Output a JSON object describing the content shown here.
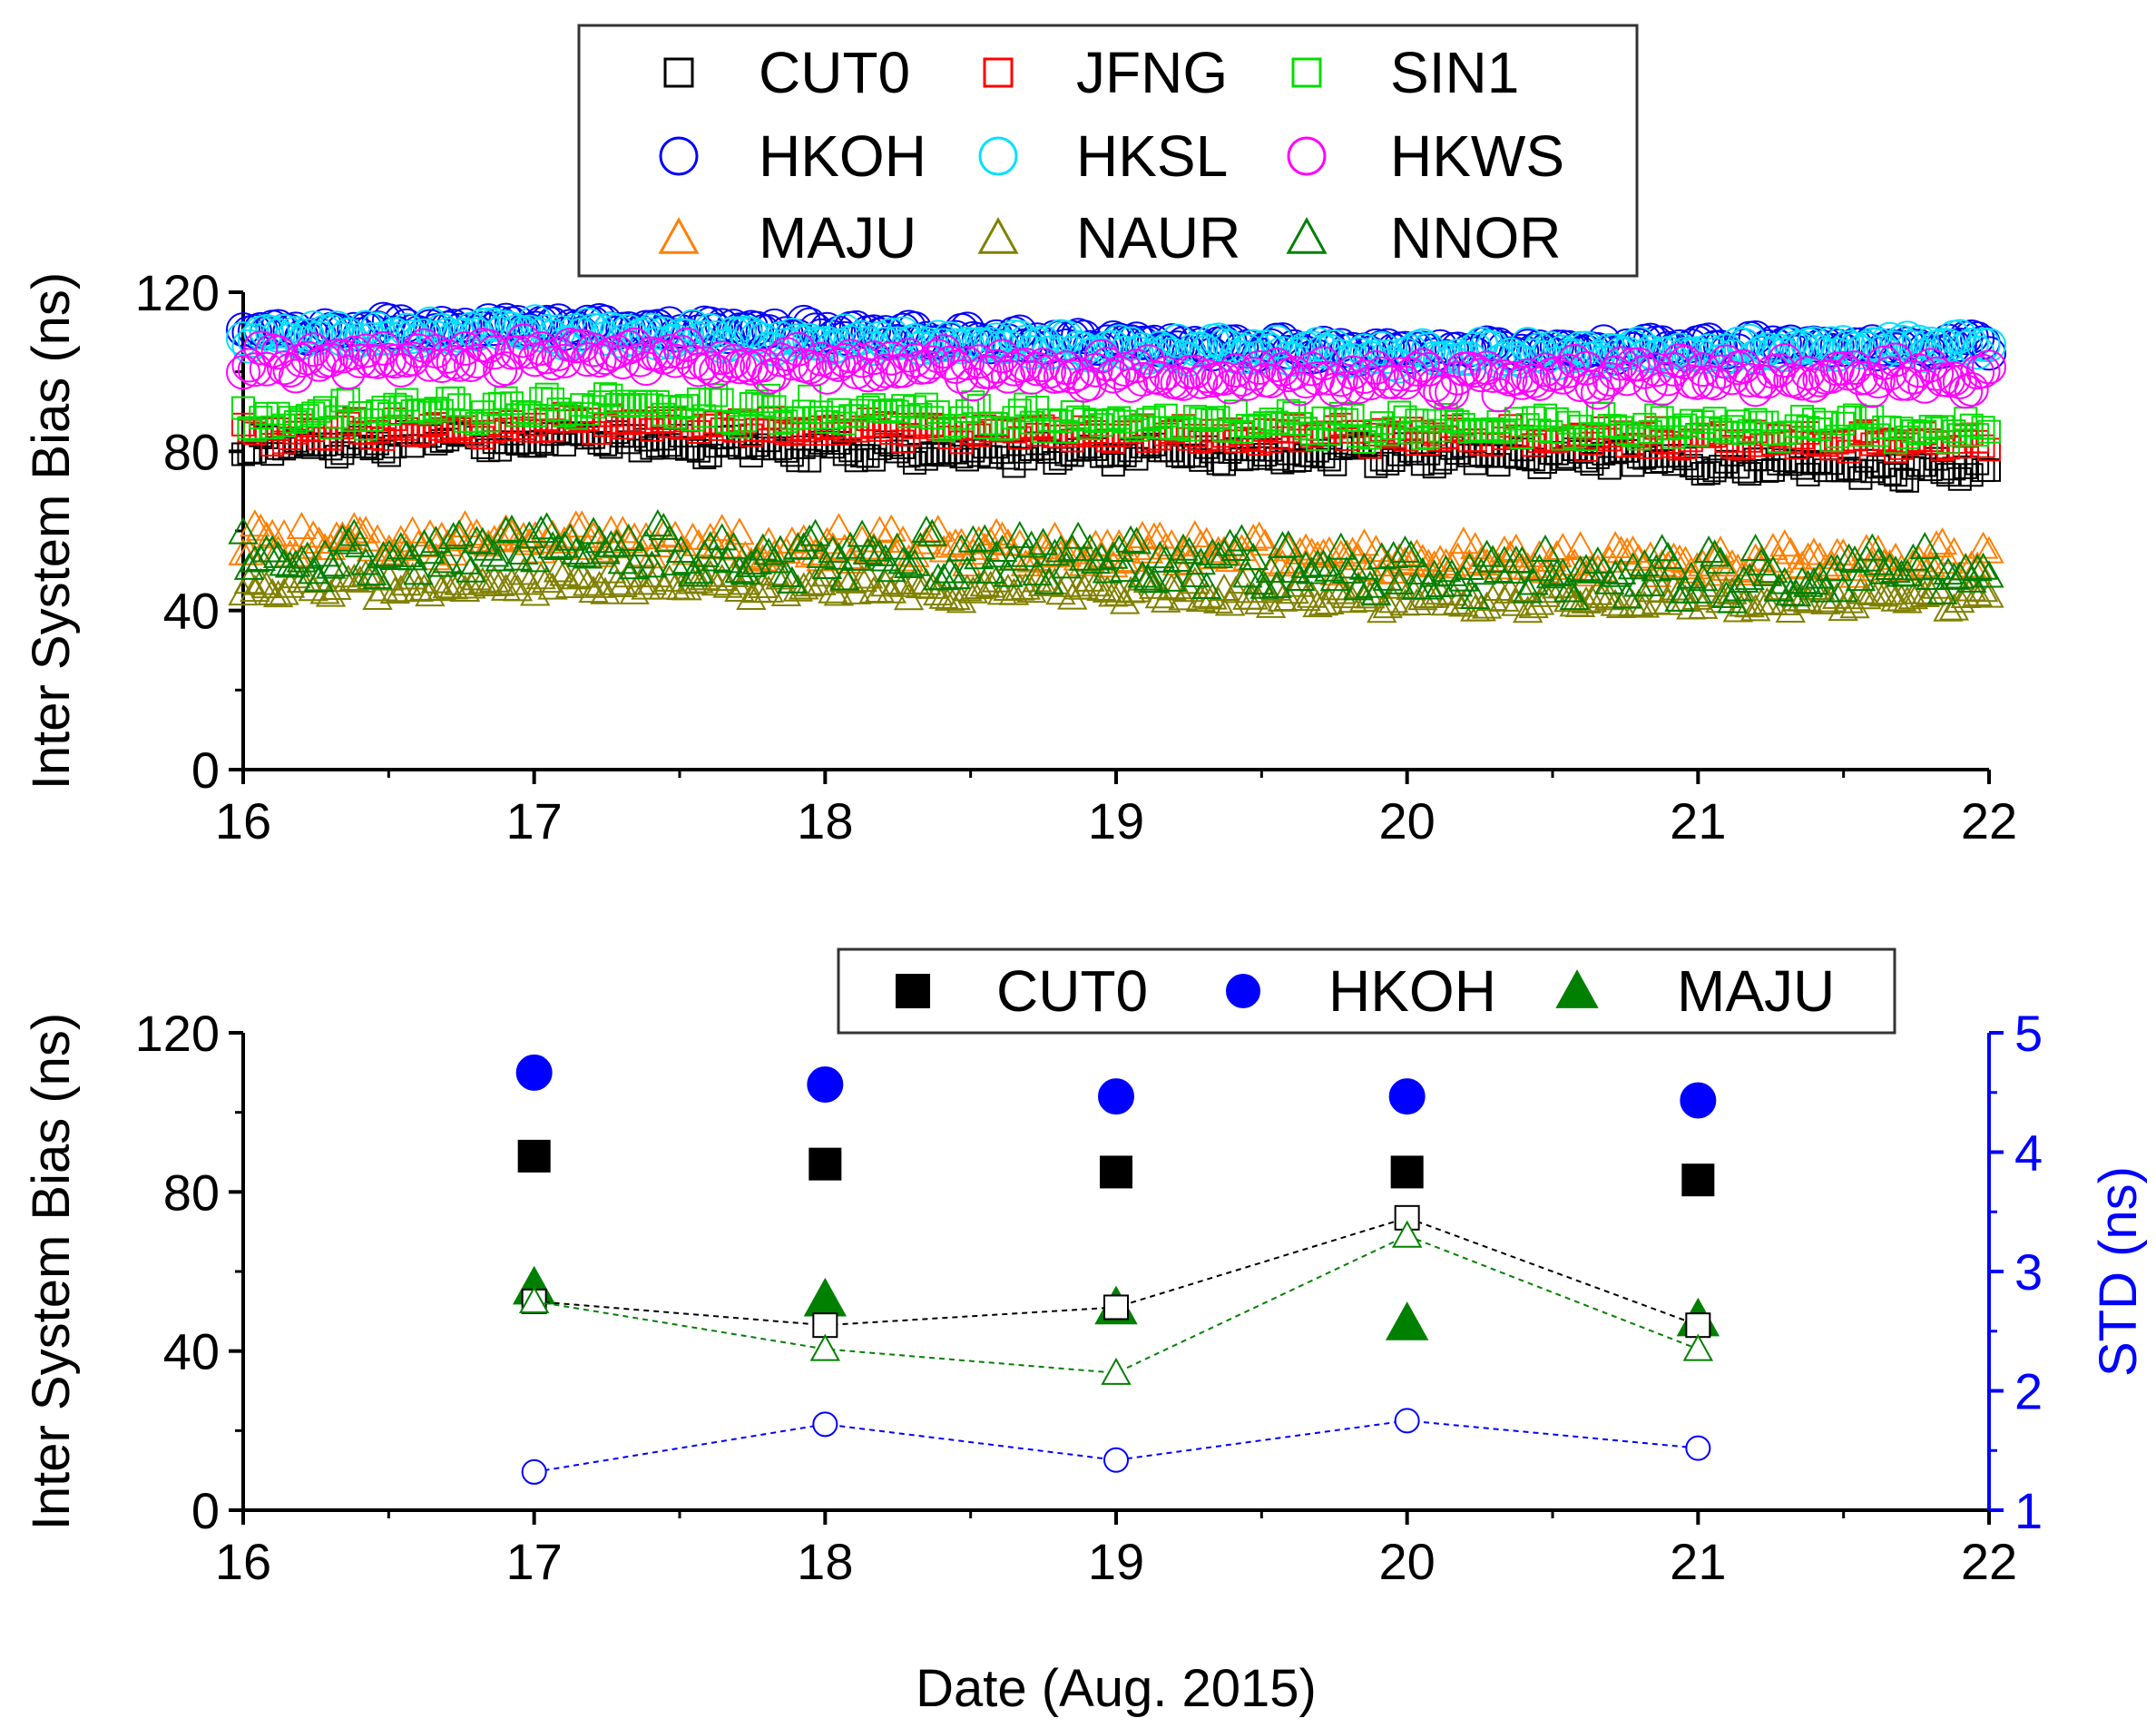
{
  "chart_data": [
    {
      "type": "scatter",
      "panel": "top",
      "xlabel": "",
      "ylabel": "Inter System Bias (ns)",
      "xlim": [
        16,
        22
      ],
      "ylim": [
        0,
        120
      ],
      "xticks": [
        "16",
        "17",
        "18",
        "19",
        "20",
        "21",
        "22"
      ],
      "yticks": [
        "0",
        "40",
        "80",
        "120"
      ],
      "legend_position": "top",
      "series": [
        {
          "name": "CUT0",
          "marker": "square",
          "color": "#000000",
          "baseline": [
            81,
            83,
            80,
            79,
            79,
            77,
            75
          ],
          "noise": 2.2
        },
        {
          "name": "JFNG",
          "marker": "square",
          "color": "#ff0000",
          "baseline": [
            84,
            87,
            86,
            84,
            84,
            83,
            82
          ],
          "noise": 2.2
        },
        {
          "name": "SIN1",
          "marker": "square",
          "color": "#00dd00",
          "baseline": [
            88,
            91,
            90,
            87,
            86,
            86,
            86
          ],
          "noise": 3.0
        },
        {
          "name": "HKOH",
          "marker": "circle",
          "color": "#0000ff",
          "baseline": [
            110,
            112,
            110,
            107,
            105,
            106,
            107
          ],
          "noise": 1.8
        },
        {
          "name": "HKSL",
          "marker": "circle",
          "color": "#00e0ff",
          "baseline": [
            109,
            110,
            108,
            106,
            104,
            105,
            107
          ],
          "noise": 2.0
        },
        {
          "name": "HKWS",
          "marker": "circle",
          "color": "#ff00ff",
          "baseline": [
            102,
            104,
            102,
            100,
            98,
            99,
            99
          ],
          "noise": 3.0
        },
        {
          "name": "MAJU",
          "marker": "triangle",
          "color": "#ff7f00",
          "baseline": [
            57,
            58,
            56,
            55,
            53,
            52,
            53
          ],
          "noise": 3.5
        },
        {
          "name": "NAUR",
          "marker": "triangle",
          "color": "#808000",
          "baseline": [
            46,
            47,
            46,
            45,
            43,
            43,
            43
          ],
          "noise": 2.5
        },
        {
          "name": "NNOR",
          "marker": "triangle",
          "color": "#008000",
          "baseline": [
            54,
            56,
            54,
            52,
            50,
            49,
            50
          ],
          "noise": 5.0
        }
      ]
    },
    {
      "type": "scatter",
      "panel": "bottom",
      "xlabel": "Date (Aug. 2015)",
      "ylabel": "Inter System Bias (ns)",
      "y2label": "STD (ns)",
      "xlim": [
        16,
        22
      ],
      "ylim": [
        0,
        120
      ],
      "y2lim": [
        1,
        5
      ],
      "xticks": [
        "16",
        "17",
        "18",
        "19",
        "20",
        "21",
        "22"
      ],
      "yticks": [
        "0",
        "40",
        "80",
        "120"
      ],
      "y2ticks": [
        "1",
        "2",
        "3",
        "4",
        "5"
      ],
      "legend_position": "top-right",
      "x": [
        17,
        18,
        19,
        20,
        21
      ],
      "series": [
        {
          "name": "CUT0",
          "axis": "left",
          "marker": "square",
          "fill": "solid",
          "color": "#000000",
          "values": [
            89,
            87,
            85,
            85,
            83
          ]
        },
        {
          "name": "HKOH",
          "axis": "left",
          "marker": "circle",
          "fill": "solid",
          "color": "#0000ff",
          "values": [
            110,
            107,
            104,
            104,
            103
          ]
        },
        {
          "name": "MAJU",
          "axis": "left",
          "marker": "triangle",
          "fill": "solid",
          "color": "#008000",
          "values": [
            56,
            53,
            51,
            47,
            48
          ]
        },
        {
          "name": "CUT0 STD",
          "axis": "right",
          "marker": "square",
          "fill": "open",
          "color": "#000000",
          "line": "dashed",
          "values": [
            2.75,
            2.55,
            2.7,
            3.45,
            2.55
          ]
        },
        {
          "name": "MAJU STD",
          "axis": "right",
          "marker": "triangle",
          "fill": "open",
          "color": "#008000",
          "line": "dashed",
          "values": [
            2.75,
            2.35,
            2.15,
            3.3,
            2.35
          ]
        },
        {
          "name": "HKOH STD",
          "axis": "right",
          "marker": "circle",
          "fill": "open",
          "color": "#0000ff",
          "line": "dashed",
          "values": [
            1.32,
            1.72,
            1.42,
            1.75,
            1.52
          ]
        }
      ]
    }
  ],
  "legends": {
    "top": {
      "rows": [
        [
          {
            "label": "CUT0",
            "marker": "square",
            "color": "#000000"
          },
          {
            "label": "JFNG",
            "marker": "square",
            "color": "#ff0000"
          },
          {
            "label": "SIN1",
            "marker": "square",
            "color": "#00dd00"
          }
        ],
        [
          {
            "label": "HKOH",
            "marker": "circle",
            "color": "#0000ff"
          },
          {
            "label": "HKSL",
            "marker": "circle",
            "color": "#00e0ff"
          },
          {
            "label": "HKWS",
            "marker": "circle",
            "color": "#ff00ff"
          }
        ],
        [
          {
            "label": "MAJU",
            "marker": "triangle",
            "color": "#ff7f00"
          },
          {
            "label": "NAUR",
            "marker": "triangle",
            "color": "#808000"
          },
          {
            "label": "NNOR",
            "marker": "triangle",
            "color": "#008000"
          }
        ]
      ]
    },
    "bottom": {
      "items": [
        {
          "label": "CUT0",
          "marker": "square",
          "color": "#000000"
        },
        {
          "label": "HKOH",
          "marker": "circle",
          "color": "#0000ff"
        },
        {
          "label": "MAJU",
          "marker": "triangle",
          "color": "#008000"
        }
      ]
    }
  }
}
